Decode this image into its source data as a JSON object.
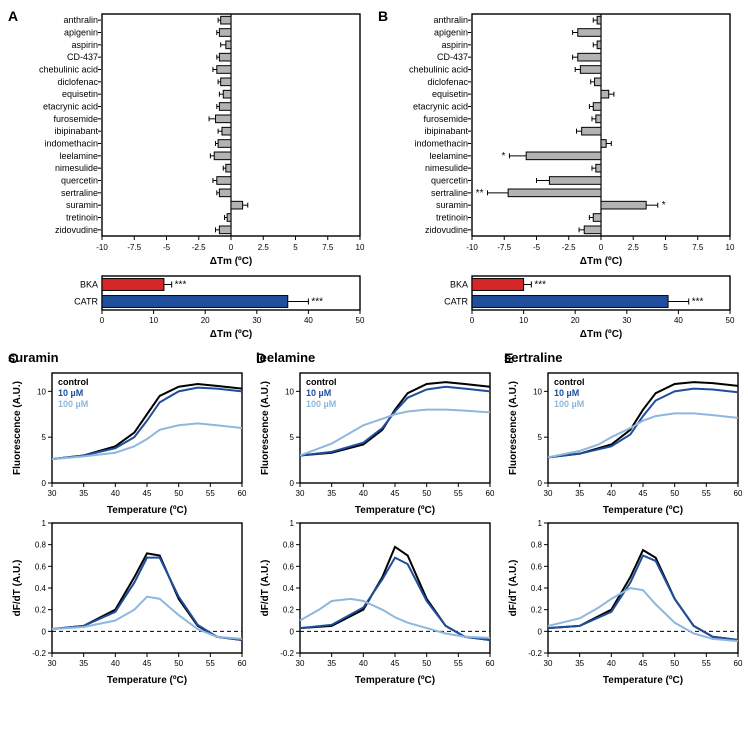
{
  "panelA": {
    "label": "A",
    "type": "bar-horizontal",
    "xlabel": "ΔTm (ºC)",
    "xlim": [
      -10,
      10
    ],
    "xticks": [
      -10,
      -7.5,
      -5,
      -2.5,
      0,
      2.5,
      5,
      7.5,
      10
    ],
    "label_fontsize": 10,
    "tick_fontsize": 8,
    "categories": [
      "anthralin",
      "apigenin",
      "aspirin",
      "CD-437",
      "chebulinic acid",
      "diclofenac",
      "equisetin",
      "etacrynic acid",
      "furosemide",
      "ibipinabant",
      "indomethacin",
      "leelamine",
      "nimesulide",
      "quercetin",
      "sertraline",
      "suramin",
      "tretinoin",
      "zidovudine"
    ],
    "values": [
      -0.8,
      -0.9,
      -0.4,
      -0.9,
      -1.1,
      -0.8,
      -0.6,
      -0.9,
      -1.2,
      -0.7,
      -1.0,
      -1.3,
      -0.4,
      -1.1,
      -0.9,
      0.9,
      -0.3,
      -0.9
    ],
    "errors": [
      0.2,
      0.2,
      0.4,
      0.2,
      0.3,
      0.2,
      0.3,
      0.2,
      0.5,
      0.3,
      0.2,
      0.3,
      0.2,
      0.3,
      0.2,
      0.4,
      0.2,
      0.3
    ],
    "bar_color": "#b3b3b3",
    "bar_stroke": "#000000",
    "grid": false,
    "bg": "#ffffff"
  },
  "panelB": {
    "label": "B",
    "type": "bar-horizontal",
    "xlabel": "ΔTm (ºC)",
    "xlim": [
      -10,
      10
    ],
    "xticks": [
      -10,
      -7.5,
      -5,
      -2.5,
      0,
      2.5,
      5,
      7.5,
      10
    ],
    "label_fontsize": 10,
    "tick_fontsize": 8,
    "categories": [
      "anthralin",
      "apigenin",
      "aspirin",
      "CD-437",
      "chebulinic acid",
      "diclofenac",
      "equisetin",
      "etacrynic acid",
      "furosemide",
      "ibipinabant",
      "indomethacin",
      "leelamine",
      "nimesulide",
      "quercetin",
      "sertraline",
      "suramin",
      "tretinoin",
      "zidovudine"
    ],
    "values": [
      -0.3,
      -1.8,
      -0.3,
      -1.8,
      -1.6,
      -0.5,
      0.6,
      -0.6,
      -0.4,
      -1.5,
      0.4,
      -5.8,
      -0.4,
      -4.0,
      -7.2,
      3.5,
      -0.6,
      -1.3
    ],
    "errors": [
      0.3,
      0.4,
      0.3,
      0.4,
      0.4,
      0.3,
      0.4,
      0.3,
      0.3,
      0.4,
      0.4,
      1.3,
      0.3,
      1.0,
      1.6,
      0.9,
      0.3,
      0.4
    ],
    "sig": {
      "leelamine": "*",
      "sertraline": "**",
      "suramin": "*"
    },
    "bar_color": "#b3b3b3",
    "bar_stroke": "#000000",
    "grid": false,
    "bg": "#ffffff"
  },
  "controlsA": {
    "type": "bar-horizontal",
    "xlabel": "ΔTm (ºC)",
    "xlim": [
      0,
      50
    ],
    "xticks": [
      0,
      10,
      20,
      30,
      40,
      50
    ],
    "categories": [
      "BKA",
      "CATR"
    ],
    "values": [
      12,
      36
    ],
    "errors": [
      1.5,
      4.0
    ],
    "sig": {
      "BKA": "***",
      "CATR": "***"
    },
    "colors": {
      "BKA": "#d62728",
      "CATR": "#1f4e9c"
    },
    "bar_stroke": "#000000"
  },
  "controlsB": {
    "type": "bar-horizontal",
    "xlabel": "ΔTm (ºC)",
    "xlim": [
      0,
      50
    ],
    "xticks": [
      0,
      10,
      20,
      30,
      40,
      50
    ],
    "categories": [
      "BKA",
      "CATR"
    ],
    "values": [
      10,
      38
    ],
    "errors": [
      1.5,
      4.0
    ],
    "sig": {
      "BKA": "***",
      "CATR": "***"
    },
    "colors": {
      "BKA": "#d62728",
      "CATR": "#1f4e9c"
    },
    "bar_stroke": "#000000"
  },
  "panelC": {
    "label": "C",
    "title": "suramin",
    "legend": [
      "control",
      "10 µM",
      "100 µM"
    ],
    "legend_colors": [
      "#000000",
      "#1f4e9c",
      "#8fb7de"
    ],
    "fluor": {
      "ylabel": "Fluorescence (A.U.)",
      "xlabel": "Temperature (ºC)",
      "xlim": [
        30,
        60
      ],
      "ylim": [
        0,
        12
      ],
      "xticks": [
        30,
        35,
        40,
        45,
        50,
        55,
        60
      ],
      "yticks": [
        0,
        5,
        10
      ],
      "series": [
        {
          "color": "#000000",
          "width": 2,
          "x": [
            30,
            35,
            40,
            43,
            45,
            47,
            50,
            53,
            56,
            60
          ],
          "y": [
            2.6,
            3.0,
            4.0,
            5.5,
            7.5,
            9.5,
            10.5,
            10.8,
            10.6,
            10.3
          ]
        },
        {
          "color": "#1f4e9c",
          "width": 2,
          "x": [
            30,
            35,
            40,
            43,
            45,
            47,
            50,
            53,
            56,
            60
          ],
          "y": [
            2.6,
            3.0,
            3.8,
            5.0,
            6.8,
            8.8,
            10.0,
            10.4,
            10.3,
            10.0
          ]
        },
        {
          "color": "#8fb7de",
          "width": 2,
          "x": [
            30,
            35,
            40,
            43,
            45,
            47,
            50,
            53,
            56,
            60
          ],
          "y": [
            2.6,
            2.9,
            3.3,
            4.0,
            4.8,
            5.8,
            6.3,
            6.5,
            6.3,
            6.0
          ]
        }
      ]
    },
    "deriv": {
      "ylabel": "dF/dT (A.U.)",
      "xlabel": "Temperature (ºC)",
      "xlim": [
        30,
        60
      ],
      "ylim": [
        -0.2,
        1.0
      ],
      "xticks": [
        30,
        35,
        40,
        45,
        50,
        55,
        60
      ],
      "yticks": [
        -0.2,
        0,
        0.2,
        0.4,
        0.6,
        0.8,
        1.0
      ],
      "zero_line": true,
      "series": [
        {
          "color": "#000000",
          "width": 2,
          "x": [
            30,
            35,
            40,
            43,
            45,
            47,
            50,
            53,
            56,
            60
          ],
          "y": [
            0.02,
            0.05,
            0.2,
            0.5,
            0.72,
            0.7,
            0.3,
            0.05,
            -0.05,
            -0.08
          ]
        },
        {
          "color": "#1f4e9c",
          "width": 2,
          "x": [
            30,
            35,
            40,
            43,
            45,
            47,
            50,
            53,
            56,
            60
          ],
          "y": [
            0.02,
            0.05,
            0.18,
            0.45,
            0.68,
            0.68,
            0.32,
            0.06,
            -0.05,
            -0.08
          ]
        },
        {
          "color": "#8fb7de",
          "width": 2,
          "x": [
            30,
            35,
            40,
            43,
            45,
            47,
            50,
            53,
            56,
            60
          ],
          "y": [
            0.02,
            0.04,
            0.1,
            0.2,
            0.32,
            0.3,
            0.15,
            0.02,
            -0.05,
            -0.07
          ]
        }
      ]
    }
  },
  "panelD": {
    "label": "D",
    "title": "leelamine",
    "legend": [
      "control",
      "10 µM",
      "100 µM"
    ],
    "legend_colors": [
      "#000000",
      "#1f4e9c",
      "#8fb7de"
    ],
    "fluor": {
      "ylabel": "Fluorescence (A.U.)",
      "xlabel": "Temperature (ºC)",
      "xlim": [
        30,
        60
      ],
      "ylim": [
        0,
        12
      ],
      "xticks": [
        30,
        35,
        40,
        45,
        50,
        55,
        60
      ],
      "yticks": [
        0,
        5,
        10
      ],
      "series": [
        {
          "color": "#000000",
          "width": 2,
          "x": [
            30,
            35,
            40,
            43,
            45,
            47,
            50,
            53,
            56,
            60
          ],
          "y": [
            3.0,
            3.3,
            4.2,
            5.8,
            8.0,
            9.8,
            10.8,
            11.0,
            10.8,
            10.5
          ]
        },
        {
          "color": "#1f4e9c",
          "width": 2,
          "x": [
            30,
            35,
            40,
            43,
            45,
            47,
            50,
            53,
            56,
            60
          ],
          "y": [
            3.0,
            3.4,
            4.4,
            6.0,
            7.8,
            9.3,
            10.2,
            10.5,
            10.3,
            10.0
          ]
        },
        {
          "color": "#8fb7de",
          "width": 2,
          "x": [
            30,
            35,
            38,
            40,
            43,
            45,
            47,
            50,
            53,
            56,
            60
          ],
          "y": [
            3.0,
            4.3,
            5.5,
            6.3,
            7.0,
            7.5,
            7.8,
            8.0,
            8.0,
            7.9,
            7.7
          ]
        }
      ]
    },
    "deriv": {
      "ylabel": "dF/dT (A.U.)",
      "xlabel": "Temperature (ºC)",
      "xlim": [
        30,
        60
      ],
      "ylim": [
        -0.2,
        1.0
      ],
      "xticks": [
        30,
        35,
        40,
        45,
        50,
        55,
        60
      ],
      "yticks": [
        -0.2,
        0,
        0.2,
        0.4,
        0.6,
        0.8,
        1.0
      ],
      "zero_line": true,
      "series": [
        {
          "color": "#000000",
          "width": 2,
          "x": [
            30,
            35,
            40,
            43,
            45,
            47,
            50,
            53,
            56,
            60
          ],
          "y": [
            0.03,
            0.05,
            0.2,
            0.5,
            0.78,
            0.7,
            0.3,
            0.05,
            -0.05,
            -0.08
          ]
        },
        {
          "color": "#1f4e9c",
          "width": 2,
          "x": [
            30,
            35,
            40,
            43,
            45,
            47,
            50,
            53,
            56,
            60
          ],
          "y": [
            0.03,
            0.06,
            0.22,
            0.48,
            0.68,
            0.62,
            0.28,
            0.05,
            -0.05,
            -0.08
          ]
        },
        {
          "color": "#8fb7de",
          "width": 2,
          "x": [
            30,
            33,
            35,
            38,
            40,
            43,
            45,
            47,
            50,
            53,
            56,
            60
          ],
          "y": [
            0.1,
            0.2,
            0.28,
            0.3,
            0.28,
            0.2,
            0.13,
            0.08,
            0.03,
            -0.02,
            -0.05,
            -0.06
          ]
        }
      ]
    }
  },
  "panelE": {
    "label": "E",
    "title": "sertraline",
    "legend": [
      "control",
      "10 µM",
      "100 µM"
    ],
    "legend_colors": [
      "#000000",
      "#1f4e9c",
      "#8fb7de"
    ],
    "fluor": {
      "ylabel": "Fluorescence (A.U.)",
      "xlabel": "Temperature (ºC)",
      "xlim": [
        30,
        60
      ],
      "ylim": [
        0,
        12
      ],
      "xticks": [
        30,
        35,
        40,
        45,
        50,
        55,
        60
      ],
      "yticks": [
        0,
        5,
        10
      ],
      "series": [
        {
          "color": "#000000",
          "width": 2,
          "x": [
            30,
            35,
            40,
            43,
            45,
            47,
            50,
            53,
            56,
            60
          ],
          "y": [
            2.8,
            3.2,
            4.2,
            5.8,
            8.0,
            9.8,
            10.8,
            11.0,
            10.9,
            10.6
          ]
        },
        {
          "color": "#1f4e9c",
          "width": 2,
          "x": [
            30,
            35,
            40,
            43,
            45,
            47,
            50,
            53,
            56,
            60
          ],
          "y": [
            2.8,
            3.2,
            4.0,
            5.3,
            7.3,
            9.0,
            10.0,
            10.3,
            10.2,
            9.9
          ]
        },
        {
          "color": "#8fb7de",
          "width": 2,
          "x": [
            30,
            35,
            38,
            40,
            43,
            45,
            47,
            50,
            53,
            56,
            60
          ],
          "y": [
            2.8,
            3.5,
            4.2,
            5.0,
            6.0,
            6.8,
            7.3,
            7.6,
            7.6,
            7.4,
            7.1
          ]
        }
      ]
    },
    "deriv": {
      "ylabel": "dF/dT (A.U.)",
      "xlabel": "Temperature (ºC)",
      "xlim": [
        30,
        60
      ],
      "ylim": [
        -0.2,
        1.0
      ],
      "xticks": [
        30,
        35,
        40,
        45,
        50,
        55,
        60
      ],
      "yticks": [
        -0.2,
        0,
        0.2,
        0.4,
        0.6,
        0.8,
        1.0
      ],
      "zero_line": true,
      "series": [
        {
          "color": "#000000",
          "width": 2,
          "x": [
            30,
            35,
            40,
            43,
            45,
            47,
            50,
            53,
            56,
            60
          ],
          "y": [
            0.03,
            0.05,
            0.2,
            0.5,
            0.75,
            0.68,
            0.3,
            0.05,
            -0.05,
            -0.08
          ]
        },
        {
          "color": "#1f4e9c",
          "width": 2,
          "x": [
            30,
            35,
            40,
            43,
            45,
            47,
            50,
            53,
            56,
            60
          ],
          "y": [
            0.03,
            0.05,
            0.18,
            0.45,
            0.7,
            0.65,
            0.3,
            0.05,
            -0.05,
            -0.08
          ]
        },
        {
          "color": "#8fb7de",
          "width": 2,
          "x": [
            30,
            35,
            38,
            40,
            43,
            45,
            47,
            50,
            53,
            56,
            60
          ],
          "y": [
            0.05,
            0.12,
            0.22,
            0.3,
            0.4,
            0.38,
            0.25,
            0.08,
            -0.02,
            -0.07,
            -0.09
          ]
        }
      ]
    }
  },
  "style": {
    "axis_stroke": "#000000",
    "axis_width": 1.4,
    "tick_len": 4,
    "cat_fontsize": 9,
    "err_cap": 2.5
  }
}
